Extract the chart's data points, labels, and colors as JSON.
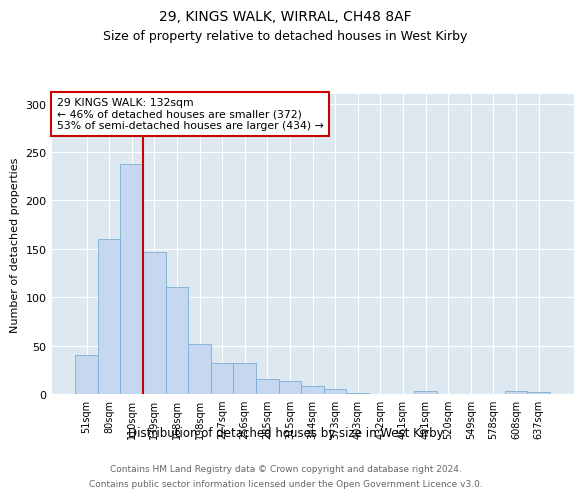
{
  "title": "29, KINGS WALK, WIRRAL, CH48 8AF",
  "subtitle": "Size of property relative to detached houses in West Kirby",
  "xlabel": "Distribution of detached houses by size in West Kirby",
  "ylabel": "Number of detached properties",
  "categories": [
    "51sqm",
    "80sqm",
    "110sqm",
    "139sqm",
    "168sqm",
    "198sqm",
    "227sqm",
    "256sqm",
    "285sqm",
    "315sqm",
    "344sqm",
    "373sqm",
    "403sqm",
    "432sqm",
    "461sqm",
    "491sqm",
    "520sqm",
    "549sqm",
    "578sqm",
    "608sqm",
    "637sqm"
  ],
  "values": [
    40,
    160,
    238,
    147,
    111,
    52,
    32,
    32,
    15,
    13,
    8,
    5,
    1,
    0,
    0,
    3,
    0,
    0,
    0,
    3,
    2
  ],
  "bar_color": "#c5d8ef",
  "bar_edge_color": "#7bafd4",
  "vline_color": "#cc0000",
  "vline_index": 2.5,
  "annotation_title": "29 KINGS WALK: 132sqm",
  "annotation_line1": "← 46% of detached houses are smaller (372)",
  "annotation_line2": "53% of semi-detached houses are larger (434) →",
  "annotation_box_color": "#cc0000",
  "ylim": [
    0,
    310
  ],
  "yticks": [
    0,
    50,
    100,
    150,
    200,
    250,
    300
  ],
  "footnote1": "Contains HM Land Registry data © Crown copyright and database right 2024.",
  "footnote2": "Contains public sector information licensed under the Open Government Licence v3.0.",
  "plot_bg_color": "#dde8f0"
}
